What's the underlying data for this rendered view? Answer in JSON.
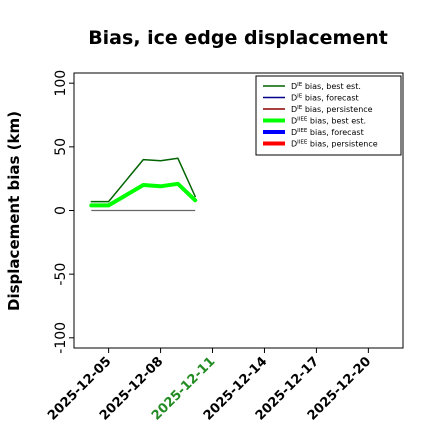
{
  "chart_data": {
    "type": "line",
    "title": "Bias, ice edge displacement",
    "ylabel": "Displacement bias (km)",
    "xlabel": "",
    "ylim": [
      -108,
      108
    ],
    "xlim": [
      "2025-12-03",
      "2025-12-22"
    ],
    "yticks": [
      -100,
      -50,
      0,
      50,
      100
    ],
    "xticks": [
      "2025-12-05",
      "2025-12-08",
      "2025-12-11",
      "2025-12-14",
      "2025-12-17",
      "2025-12-20"
    ],
    "highlight_xtick": "2025-12-11",
    "highlight_color": "#228B22",
    "grid": false,
    "legend_position": "top-right",
    "x": [
      "2025-12-04",
      "2025-12-05",
      "2025-12-07",
      "2025-12-08",
      "2025-12-09",
      "2025-12-10"
    ],
    "series": [
      {
        "name": "bias, best est.",
        "sym": "D",
        "sup": "IE",
        "color": "#006400",
        "width": 1.5,
        "values": [
          7,
          7,
          40,
          39,
          41,
          11
        ]
      },
      {
        "name": "bias, forecast",
        "sym": "D",
        "sup": "IE",
        "color": "#00008B",
        "width": 1.5,
        "values": [
          null,
          null,
          null,
          null,
          null,
          null
        ]
      },
      {
        "name": "bias, persistence",
        "sym": "D",
        "sup": "IE",
        "color": "#8B0000",
        "width": 1.5,
        "values": [
          null,
          null,
          null,
          null,
          null,
          null
        ]
      },
      {
        "name": "bias, best est.",
        "sym": "D",
        "sup": "IIEE",
        "color": "#00FF00",
        "width": 4,
        "values": [
          4,
          4,
          20,
          19,
          21,
          8
        ]
      },
      {
        "name": "bias, forecast",
        "sym": "D",
        "sup": "IIEE",
        "color": "#0000FF",
        "width": 4,
        "values": [
          null,
          null,
          null,
          null,
          null,
          null
        ]
      },
      {
        "name": "bias, persistence",
        "sym": "D",
        "sup": "IIEE",
        "color": "#FF0000",
        "width": 4,
        "values": [
          null,
          null,
          null,
          null,
          null,
          null
        ]
      }
    ],
    "zero_line": {
      "x": [
        "2025-12-04",
        "2025-12-10"
      ],
      "value": 0,
      "color": "#666666"
    }
  }
}
